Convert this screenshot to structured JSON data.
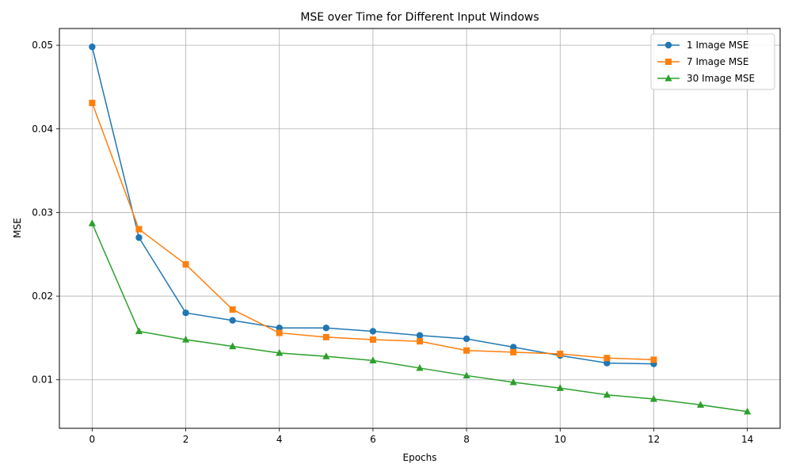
{
  "chart_data": {
    "type": "line",
    "title": "MSE over Time for Different Input Windows",
    "xlabel": "Epochs",
    "ylabel": "MSE",
    "xlim": [
      -0.7,
      14.7
    ],
    "ylim": [
      0.0042,
      0.052
    ],
    "xticks": [
      0,
      2,
      4,
      6,
      8,
      10,
      12,
      14
    ],
    "yticks": [
      0.01,
      0.02,
      0.03,
      0.04,
      0.05
    ],
    "xtick_labels": [
      "0",
      "2",
      "4",
      "6",
      "8",
      "10",
      "12",
      "14"
    ],
    "ytick_labels": [
      "0.01",
      "0.02",
      "0.03",
      "0.04",
      "0.05"
    ],
    "grid": true,
    "legend_position": "top-right",
    "series": [
      {
        "name": "1 Image MSE",
        "color": "#1f77b4",
        "marker": "circle",
        "x": [
          0,
          1,
          2,
          3,
          4,
          5,
          6,
          7,
          8,
          9,
          10,
          11,
          12
        ],
        "values": [
          0.0498,
          0.027,
          0.018,
          0.0171,
          0.0162,
          0.0162,
          0.0158,
          0.0153,
          0.0149,
          0.0139,
          0.0129,
          0.012,
          0.0119
        ]
      },
      {
        "name": "7 Image MSE",
        "color": "#ff7f0e",
        "marker": "square",
        "x": [
          0,
          1,
          2,
          3,
          4,
          5,
          6,
          7,
          8,
          9,
          10,
          11,
          12
        ],
        "values": [
          0.0431,
          0.028,
          0.0238,
          0.0184,
          0.0156,
          0.0151,
          0.0148,
          0.0146,
          0.0135,
          0.0133,
          0.0131,
          0.0126,
          0.0124
        ]
      },
      {
        "name": "30 Image MSE",
        "color": "#2ca02c",
        "marker": "triangle",
        "x": [
          0,
          1,
          2,
          3,
          4,
          5,
          6,
          7,
          8,
          9,
          10,
          11,
          12,
          13,
          14
        ],
        "values": [
          0.0287,
          0.0158,
          0.0148,
          0.014,
          0.0132,
          0.0128,
          0.0123,
          0.0114,
          0.0105,
          0.0097,
          0.009,
          0.0082,
          0.0077,
          0.007,
          0.0062
        ]
      }
    ]
  }
}
